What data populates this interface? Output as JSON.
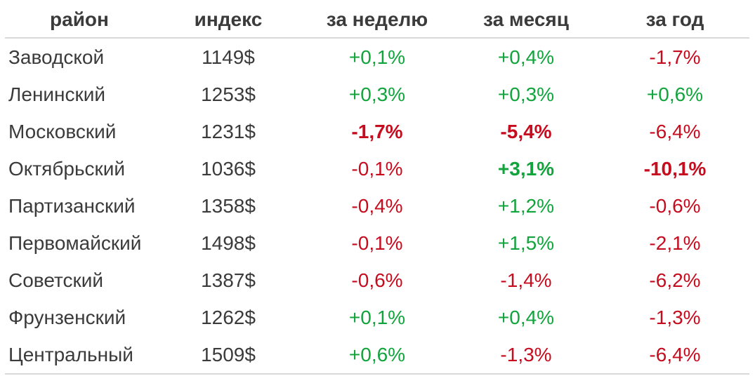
{
  "page": {
    "background": "#ffffff"
  },
  "chart_data": {
    "type": "table",
    "columns": [
      "район",
      "индекс",
      "за неделю",
      "за месяц",
      "за год"
    ],
    "rows": [
      [
        "Заводской",
        "1149$",
        "+0,1%",
        "+0,4%",
        "-1,7%"
      ],
      [
        "Ленинский",
        "1253$",
        "+0,3%",
        "+0,3%",
        "+0,6%"
      ],
      [
        "Московский",
        "1231$",
        "-1,7%",
        "-5,4%",
        "-6,4%"
      ],
      [
        "Октябрьский",
        "1036$",
        "-0,1%",
        "+3,1%",
        "-10,1%"
      ],
      [
        "Партизанский",
        "1358$",
        "-0,4%",
        "+1,2%",
        "-0,6%"
      ],
      [
        "Первомайский",
        "1498$",
        "-0,1%",
        "+1,5%",
        "-2,1%"
      ],
      [
        "Советский",
        "1387$",
        "-0,6%",
        "-1,4%",
        "-6,2%"
      ],
      [
        "Фрунзенский",
        "1262$",
        "+0,1%",
        "+0,4%",
        "-1,3%"
      ],
      [
        "Центральный",
        "1509$",
        "+0,6%",
        "-1,3%",
        "-6,4%"
      ]
    ]
  },
  "colors": {
    "text": "#3b3b3b",
    "positive": "#12a43c",
    "negative": "#c50d1f",
    "divider": "#d9d9d9"
  },
  "table": {
    "columns": [
      {
        "key": "district",
        "label": "район"
      },
      {
        "key": "index",
        "label": "индекс"
      },
      {
        "key": "week",
        "label": "за неделю"
      },
      {
        "key": "month",
        "label": "за месяц"
      },
      {
        "key": "year",
        "label": "за год"
      }
    ],
    "rows": [
      {
        "district": "Заводской",
        "index": "1149$",
        "week": {
          "value": "+0,1%",
          "trend": "positive",
          "bold": false
        },
        "month": {
          "value": "+0,4%",
          "trend": "positive",
          "bold": false
        },
        "year": {
          "value": "-1,7%",
          "trend": "negative",
          "bold": false
        }
      },
      {
        "district": "Ленинский",
        "index": "1253$",
        "week": {
          "value": "+0,3%",
          "trend": "positive",
          "bold": false
        },
        "month": {
          "value": "+0,3%",
          "trend": "positive",
          "bold": false
        },
        "year": {
          "value": "+0,6%",
          "trend": "positive",
          "bold": false
        }
      },
      {
        "district": "Московский",
        "index": "1231$",
        "week": {
          "value": "-1,7%",
          "trend": "negative",
          "bold": true
        },
        "month": {
          "value": "-5,4%",
          "trend": "negative",
          "bold": true
        },
        "year": {
          "value": "-6,4%",
          "trend": "negative",
          "bold": false
        }
      },
      {
        "district": "Октябрьский",
        "index": "1036$",
        "week": {
          "value": "-0,1%",
          "trend": "negative",
          "bold": false
        },
        "month": {
          "value": "+3,1%",
          "trend": "positive",
          "bold": true
        },
        "year": {
          "value": "-10,1%",
          "trend": "negative",
          "bold": true
        }
      },
      {
        "district": "Партизанский",
        "index": "1358$",
        "week": {
          "value": "-0,4%",
          "trend": "negative",
          "bold": false
        },
        "month": {
          "value": "+1,2%",
          "trend": "positive",
          "bold": false
        },
        "year": {
          "value": "-0,6%",
          "trend": "negative",
          "bold": false
        }
      },
      {
        "district": "Первомайский",
        "index": "1498$",
        "week": {
          "value": "-0,1%",
          "trend": "negative",
          "bold": false
        },
        "month": {
          "value": "+1,5%",
          "trend": "positive",
          "bold": false
        },
        "year": {
          "value": "-2,1%",
          "trend": "negative",
          "bold": false
        }
      },
      {
        "district": "Советский",
        "index": "1387$",
        "week": {
          "value": "-0,6%",
          "trend": "negative",
          "bold": false
        },
        "month": {
          "value": "-1,4%",
          "trend": "negative",
          "bold": false
        },
        "year": {
          "value": "-6,2%",
          "trend": "negative",
          "bold": false
        }
      },
      {
        "district": "Фрунзенский",
        "index": "1262$",
        "week": {
          "value": "+0,1%",
          "trend": "positive",
          "bold": false
        },
        "month": {
          "value": "+0,4%",
          "trend": "positive",
          "bold": false
        },
        "year": {
          "value": "-1,3%",
          "trend": "negative",
          "bold": false
        }
      },
      {
        "district": "Центральный",
        "index": "1509$",
        "week": {
          "value": "+0,6%",
          "trend": "positive",
          "bold": false
        },
        "month": {
          "value": "-1,3%",
          "trend": "negative",
          "bold": false
        },
        "year": {
          "value": "-6,4%",
          "trend": "negative",
          "bold": false
        }
      }
    ]
  }
}
